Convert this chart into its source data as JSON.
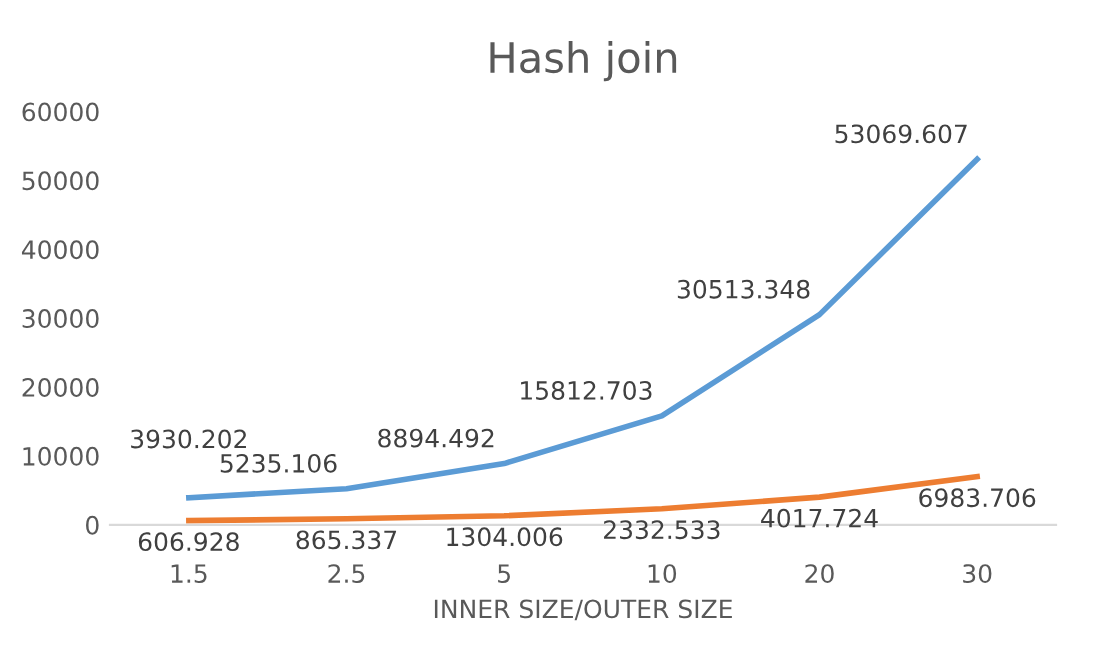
{
  "chart_data": {
    "type": "line",
    "title": "Hash join",
    "xlabel": "INNER SIZE/OUTER SIZE",
    "categories": [
      "1.5",
      "2.5",
      "5",
      "10",
      "20",
      "30"
    ],
    "series": [
      {
        "color": "#5b9bd5",
        "values": [
          3930.202,
          5235.106,
          8894.492,
          15812.703,
          30513.348,
          53069.607
        ]
      },
      {
        "color": "#ed7d31",
        "values": [
          606.928,
          865.337,
          1304.006,
          2332.533,
          4017.724,
          6983.706
        ]
      }
    ],
    "ylim": [
      0,
      60000
    ],
    "yticks": [
      0,
      10000,
      20000,
      30000,
      40000,
      50000,
      60000
    ],
    "data_labels": true,
    "grid": false,
    "legend": false,
    "marker": "none",
    "line_style": "solid"
  }
}
